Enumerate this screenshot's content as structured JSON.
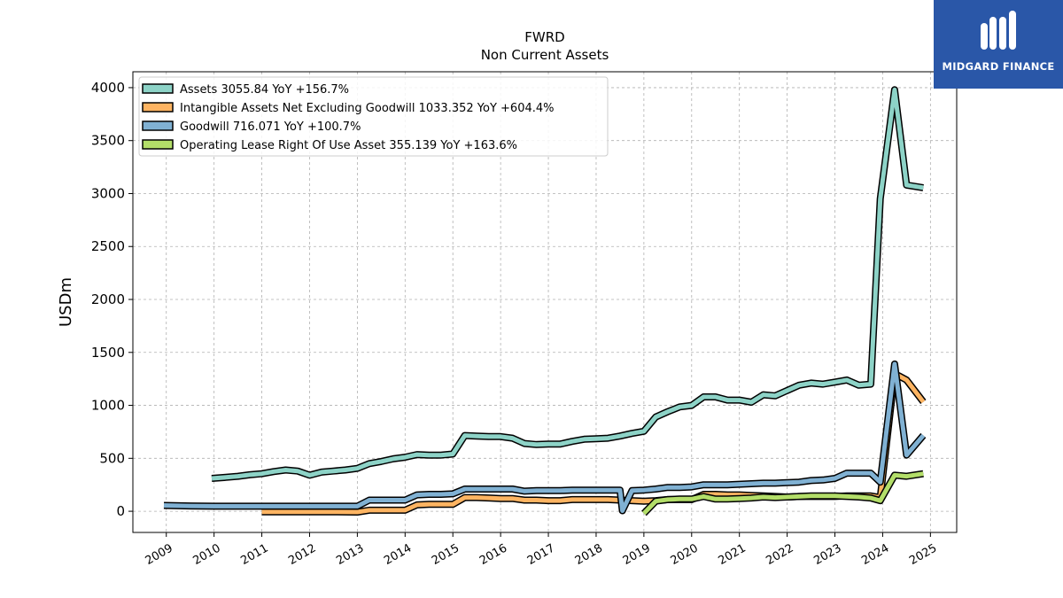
{
  "chart_data": {
    "type": "line",
    "title": "FWRD",
    "subtitle": "Non Current  Assets",
    "ylabel": "USDm",
    "xlabel": "",
    "xlim": [
      2008.3,
      2025.55
    ],
    "ylim": [
      -200,
      4150
    ],
    "yticks": [
      0,
      500,
      1000,
      1500,
      2000,
      2500,
      3000,
      3500,
      4000
    ],
    "xticks": [
      "2009",
      "2010",
      "2011",
      "2012",
      "2013",
      "2014",
      "2015",
      "2016",
      "2017",
      "2018",
      "2019",
      "2020",
      "2021",
      "2022",
      "2023",
      "2024",
      "2025"
    ],
    "grid": true,
    "legend_position": "top-left",
    "series": [
      {
        "name": "Assets",
        "legend": "Assets  3055.84 YoY +156.7%",
        "color": "#8dd3c7",
        "points": [
          [
            2009.95,
            310
          ],
          [
            2010.25,
            320
          ],
          [
            2010.5,
            330
          ],
          [
            2010.75,
            345
          ],
          [
            2011.0,
            355
          ],
          [
            2011.25,
            375
          ],
          [
            2011.5,
            390
          ],
          [
            2011.75,
            380
          ],
          [
            2012.0,
            340
          ],
          [
            2012.25,
            370
          ],
          [
            2012.5,
            380
          ],
          [
            2012.75,
            390
          ],
          [
            2013.0,
            405
          ],
          [
            2013.25,
            450
          ],
          [
            2013.5,
            470
          ],
          [
            2013.75,
            495
          ],
          [
            2014.0,
            510
          ],
          [
            2014.25,
            535
          ],
          [
            2014.5,
            530
          ],
          [
            2014.75,
            530
          ],
          [
            2015.0,
            540
          ],
          [
            2015.25,
            715
          ],
          [
            2015.5,
            710
          ],
          [
            2015.75,
            705
          ],
          [
            2016.0,
            705
          ],
          [
            2016.25,
            690
          ],
          [
            2016.5,
            640
          ],
          [
            2016.75,
            630
          ],
          [
            2017.0,
            635
          ],
          [
            2017.25,
            635
          ],
          [
            2017.5,
            660
          ],
          [
            2017.75,
            680
          ],
          [
            2018.0,
            685
          ],
          [
            2018.25,
            690
          ],
          [
            2018.5,
            710
          ],
          [
            2018.75,
            735
          ],
          [
            2019.0,
            755
          ],
          [
            2019.25,
            890
          ],
          [
            2019.5,
            940
          ],
          [
            2019.75,
            985
          ],
          [
            2020.0,
            1000
          ],
          [
            2020.25,
            1080
          ],
          [
            2020.5,
            1080
          ],
          [
            2020.75,
            1050
          ],
          [
            2021.0,
            1050
          ],
          [
            2021.25,
            1030
          ],
          [
            2021.5,
            1100
          ],
          [
            2021.75,
            1090
          ],
          [
            2022.0,
            1140
          ],
          [
            2022.25,
            1190
          ],
          [
            2022.5,
            1210
          ],
          [
            2022.75,
            1200
          ],
          [
            2023.0,
            1220
          ],
          [
            2023.25,
            1240
          ],
          [
            2023.5,
            1190
          ],
          [
            2023.75,
            1200
          ],
          [
            2023.95,
            2950
          ],
          [
            2024.25,
            3980
          ],
          [
            2024.5,
            3080
          ],
          [
            2024.85,
            3055
          ]
        ]
      },
      {
        "name": "Intangible Assets Net Excluding Goodwill",
        "legend": "Intangible Assets Net Excluding Goodwill  1033.352 YoY +604.4%",
        "color": "#fdb462",
        "points": [
          [
            2011.0,
            -5
          ],
          [
            2011.5,
            -5
          ],
          [
            2012.0,
            -5
          ],
          [
            2012.5,
            -5
          ],
          [
            2013.0,
            -8
          ],
          [
            2013.25,
            10
          ],
          [
            2013.5,
            10
          ],
          [
            2013.75,
            10
          ],
          [
            2014.0,
            10
          ],
          [
            2014.25,
            60
          ],
          [
            2014.5,
            65
          ],
          [
            2014.75,
            65
          ],
          [
            2015.0,
            65
          ],
          [
            2015.25,
            130
          ],
          [
            2015.5,
            130
          ],
          [
            2015.75,
            125
          ],
          [
            2016.0,
            120
          ],
          [
            2016.25,
            120
          ],
          [
            2016.5,
            105
          ],
          [
            2016.75,
            105
          ],
          [
            2017.0,
            100
          ],
          [
            2017.25,
            100
          ],
          [
            2017.5,
            110
          ],
          [
            2017.75,
            110
          ],
          [
            2018.0,
            110
          ],
          [
            2018.25,
            110
          ],
          [
            2018.5,
            105
          ],
          [
            2018.75,
            100
          ],
          [
            2019.0,
            95
          ],
          [
            2019.25,
            100
          ],
          [
            2019.5,
            110
          ],
          [
            2019.75,
            110
          ],
          [
            2020.0,
            110
          ],
          [
            2020.25,
            160
          ],
          [
            2020.5,
            160
          ],
          [
            2020.75,
            155
          ],
          [
            2021.0,
            155
          ],
          [
            2021.25,
            150
          ],
          [
            2021.5,
            145
          ],
          [
            2021.75,
            140
          ],
          [
            2022.0,
            135
          ],
          [
            2022.25,
            140
          ],
          [
            2022.5,
            140
          ],
          [
            2022.75,
            140
          ],
          [
            2023.0,
            140
          ],
          [
            2023.25,
            145
          ],
          [
            2023.5,
            145
          ],
          [
            2023.75,
            145
          ],
          [
            2023.95,
            130
          ],
          [
            2024.25,
            1300
          ],
          [
            2024.5,
            1240
          ],
          [
            2024.85,
            1033
          ]
        ]
      },
      {
        "name": "Goodwill",
        "legend": "Goodwill  716.071 YoY +100.7%",
        "color": "#80b1d3",
        "points": [
          [
            2008.95,
            55
          ],
          [
            2009.5,
            50
          ],
          [
            2010.0,
            48
          ],
          [
            2010.5,
            48
          ],
          [
            2011.0,
            48
          ],
          [
            2011.5,
            48
          ],
          [
            2012.0,
            48
          ],
          [
            2012.5,
            48
          ],
          [
            2013.0,
            48
          ],
          [
            2013.25,
            105
          ],
          [
            2013.5,
            105
          ],
          [
            2013.75,
            105
          ],
          [
            2014.0,
            105
          ],
          [
            2014.25,
            155
          ],
          [
            2014.5,
            160
          ],
          [
            2014.75,
            160
          ],
          [
            2015.0,
            165
          ],
          [
            2015.25,
            210
          ],
          [
            2015.5,
            210
          ],
          [
            2015.75,
            210
          ],
          [
            2016.0,
            210
          ],
          [
            2016.25,
            210
          ],
          [
            2016.5,
            190
          ],
          [
            2016.75,
            195
          ],
          [
            2017.0,
            195
          ],
          [
            2017.25,
            195
          ],
          [
            2017.5,
            200
          ],
          [
            2017.75,
            200
          ],
          [
            2018.0,
            200
          ],
          [
            2018.25,
            200
          ],
          [
            2018.5,
            200
          ],
          [
            2018.55,
            5
          ],
          [
            2018.75,
            195
          ],
          [
            2019.0,
            200
          ],
          [
            2019.25,
            210
          ],
          [
            2019.5,
            225
          ],
          [
            2019.75,
            225
          ],
          [
            2020.0,
            230
          ],
          [
            2020.25,
            250
          ],
          [
            2020.5,
            250
          ],
          [
            2020.75,
            250
          ],
          [
            2021.0,
            255
          ],
          [
            2021.25,
            260
          ],
          [
            2021.5,
            265
          ],
          [
            2021.75,
            265
          ],
          [
            2022.0,
            270
          ],
          [
            2022.25,
            275
          ],
          [
            2022.5,
            290
          ],
          [
            2022.75,
            295
          ],
          [
            2023.0,
            310
          ],
          [
            2023.25,
            360
          ],
          [
            2023.5,
            360
          ],
          [
            2023.75,
            360
          ],
          [
            2023.95,
            275
          ],
          [
            2024.25,
            1390
          ],
          [
            2024.5,
            530
          ],
          [
            2024.85,
            716
          ]
        ]
      },
      {
        "name": "Operating Lease Right Of Use Asset",
        "legend": "Operating Lease Right Of Use Asset  355.139 YoY +163.6%",
        "color": "#b3de69",
        "points": [
          [
            2019.0,
            -20
          ],
          [
            2019.25,
            95
          ],
          [
            2019.5,
            110
          ],
          [
            2019.75,
            115
          ],
          [
            2020.0,
            115
          ],
          [
            2020.25,
            140
          ],
          [
            2020.5,
            115
          ],
          [
            2020.75,
            115
          ],
          [
            2021.0,
            120
          ],
          [
            2021.25,
            125
          ],
          [
            2021.5,
            135
          ],
          [
            2021.75,
            130
          ],
          [
            2022.0,
            135
          ],
          [
            2022.25,
            140
          ],
          [
            2022.5,
            145
          ],
          [
            2022.75,
            145
          ],
          [
            2023.0,
            145
          ],
          [
            2023.25,
            140
          ],
          [
            2023.5,
            135
          ],
          [
            2023.75,
            125
          ],
          [
            2023.95,
            100
          ],
          [
            2024.25,
            340
          ],
          [
            2024.5,
            330
          ],
          [
            2024.85,
            355
          ]
        ]
      }
    ]
  },
  "logo": {
    "text": "MIDGARD FINANCE",
    "color": "#2a57a8"
  }
}
